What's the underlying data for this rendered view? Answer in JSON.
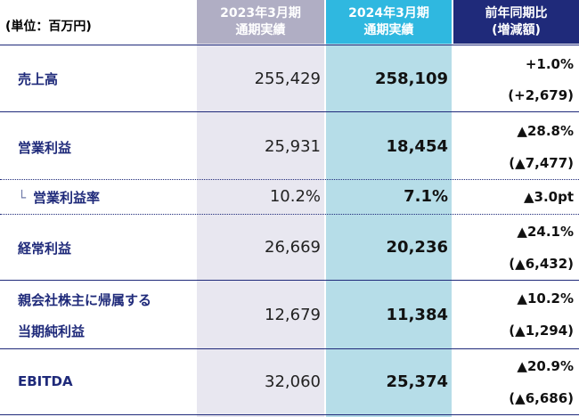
{
  "header": {
    "unit": "(単位：百万円)",
    "col_2023": [
      "2023年3月期",
      "通期実績"
    ],
    "col_2024": [
      "2024年3月期",
      "通期実績"
    ],
    "col_diff": [
      "前年同期比",
      "(増減額)"
    ]
  },
  "rows": {
    "sales": {
      "label": "売上高",
      "v2023": "255,429",
      "v2024": "258,109",
      "pct": "+1.0%",
      "amt": "(+2,679)"
    },
    "op_income": {
      "label": "営業利益",
      "v2023": "25,931",
      "v2024": "18,454",
      "pct": "▲28.8%",
      "amt": "(▲7,477)"
    },
    "op_margin": {
      "prefix": "└",
      "label": "営業利益率",
      "v2023": "10.2%",
      "v2024": "7.1%",
      "pct": "▲3.0pt"
    },
    "ordinary": {
      "label": "経常利益",
      "v2023": "26,669",
      "v2024": "20,236",
      "pct": "▲24.1%",
      "amt": "(▲6,432)"
    },
    "net_income": {
      "label_1": "親会社株主に帰属する",
      "label_2": "当期純利益",
      "v2023": "12,679",
      "v2024": "11,384",
      "pct": "▲10.2%",
      "amt": "(▲1,294)"
    },
    "ebitda": {
      "label": "EBITDA",
      "v2023": "32,060",
      "v2024": "25,374",
      "pct": "▲20.9%",
      "amt": "(▲6,686)"
    }
  }
}
